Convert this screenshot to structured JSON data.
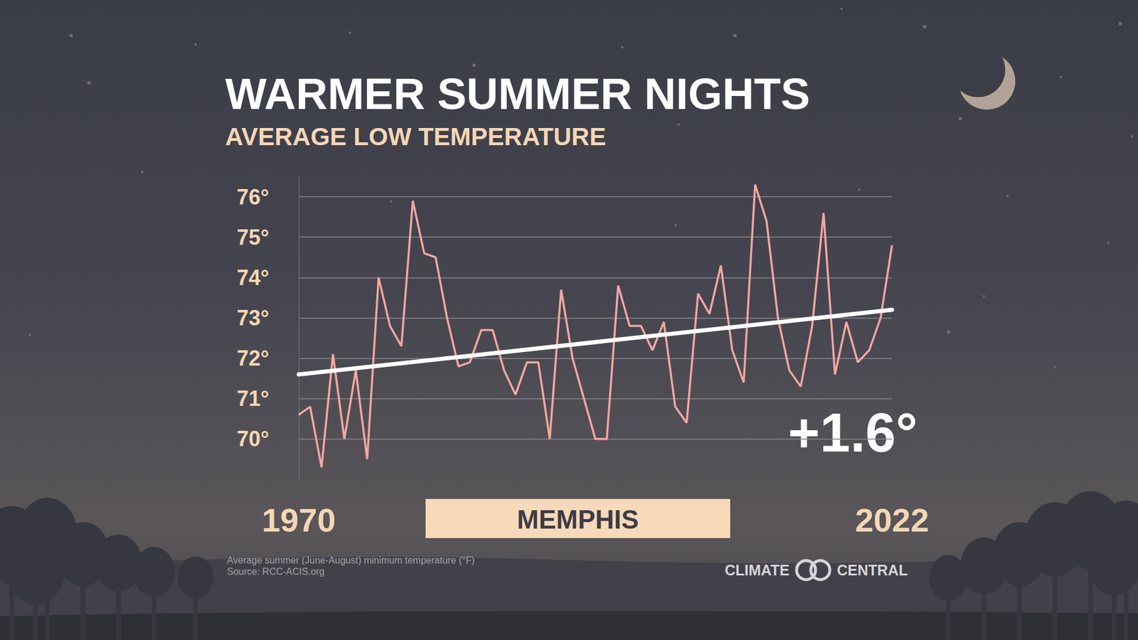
{
  "chart_data": {
    "type": "line",
    "title": "WARMER SUMMER NIGHTS",
    "subtitle": "AVERAGE LOW TEMPERATURE",
    "location": "MEMPHIS",
    "annotation": "+1.6°",
    "footnote": "Average summer (June-August) minimum temperature (°F)",
    "source": "Source: RCC-ACIS.org",
    "brand": "CLIMATE CENTRAL",
    "x": [
      1970,
      1971,
      1972,
      1973,
      1974,
      1975,
      1976,
      1977,
      1978,
      1979,
      1980,
      1981,
      1982,
      1983,
      1984,
      1985,
      1986,
      1987,
      1988,
      1989,
      1990,
      1991,
      1992,
      1993,
      1994,
      1995,
      1996,
      1997,
      1998,
      1999,
      2000,
      2001,
      2002,
      2003,
      2004,
      2005,
      2006,
      2007,
      2008,
      2009,
      2010,
      2011,
      2012,
      2013,
      2014,
      2015,
      2016,
      2017,
      2018,
      2019,
      2020,
      2021,
      2022
    ],
    "values": [
      70.6,
      70.8,
      69.3,
      72.1,
      70.0,
      71.7,
      69.5,
      74.0,
      72.8,
      72.3,
      75.9,
      74.6,
      74.5,
      73.0,
      71.8,
      71.9,
      72.7,
      72.7,
      71.7,
      71.1,
      71.9,
      71.9,
      70.0,
      73.7,
      72.0,
      71.0,
      70.0,
      70.0,
      73.8,
      72.8,
      72.8,
      72.2,
      72.9,
      70.8,
      70.4,
      73.6,
      73.1,
      74.3,
      72.2,
      71.4,
      76.3,
      75.4,
      73.0,
      71.7,
      71.3,
      72.8,
      75.6,
      71.6,
      72.9,
      71.9,
      72.2,
      73.0,
      74.8
    ],
    "color": "#f4a6a2",
    "trend": {
      "x": [
        1970,
        2022
      ],
      "values": [
        71.6,
        73.2
      ],
      "color": "#ffffff"
    },
    "xlim": [
      1970,
      2022
    ],
    "xticks": [
      1970,
      2022
    ],
    "ylim": [
      69,
      76.5
    ],
    "yticks": [
      {
        "value": 70,
        "label": "70°"
      },
      {
        "value": 71,
        "label": "71°"
      },
      {
        "value": 72,
        "label": "72°"
      },
      {
        "value": 73,
        "label": "73°"
      },
      {
        "value": 74,
        "label": "74°"
      },
      {
        "value": 75,
        "label": "75°"
      },
      {
        "value": 76,
        "label": "76°"
      }
    ],
    "grid": true
  }
}
